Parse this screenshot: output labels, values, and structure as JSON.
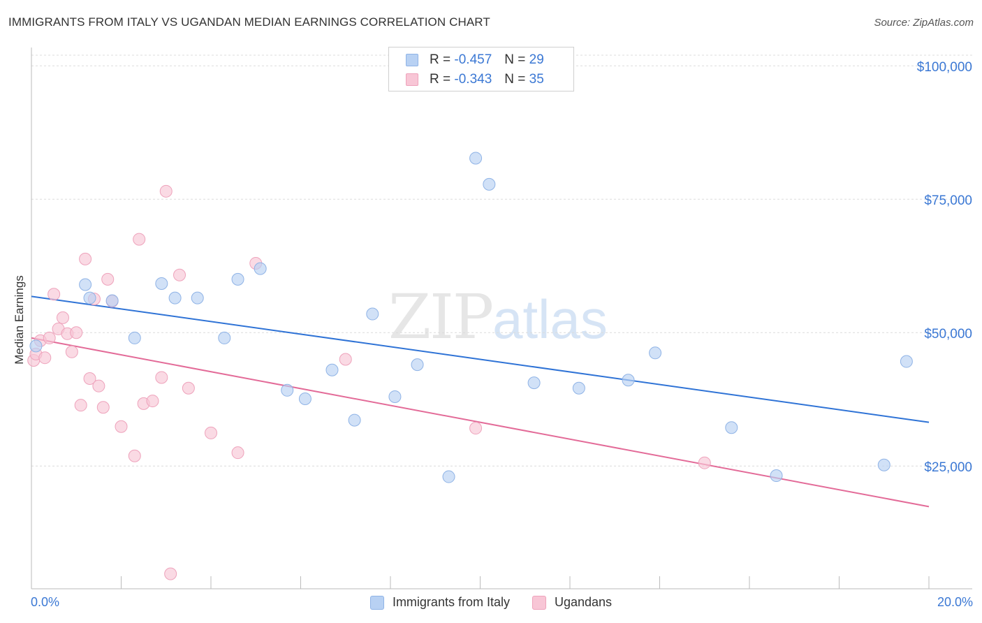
{
  "header": {
    "title": "IMMIGRANTS FROM ITALY VS UGANDAN MEDIAN EARNINGS CORRELATION CHART",
    "source": "Source: ZipAtlas.com"
  },
  "watermark": {
    "zip": "ZIP",
    "atlas": "atlas"
  },
  "legend_top": {
    "rows": [
      {
        "r_label": "R = ",
        "r_value": "-0.457",
        "n_label": "N = ",
        "n_value": "29"
      },
      {
        "r_label": "R = ",
        "r_value": "-0.343",
        "n_label": "N = ",
        "n_value": "35"
      }
    ]
  },
  "legend_bottom": {
    "items": [
      {
        "label": "Immigrants from Italy"
      },
      {
        "label": "Ugandans"
      }
    ]
  },
  "axes": {
    "ylabel": "Median Earnings",
    "x_tick_left": "0.0%",
    "x_tick_right": "20.0%",
    "y_ticks": [
      "$100,000",
      "$75,000",
      "$50,000",
      "$25,000"
    ]
  },
  "colors": {
    "italy_fill": "#b8d1f3",
    "italy_stroke": "#8fb3e6",
    "italy_line": "#2f73d6",
    "ugandan_fill": "#f8c6d6",
    "ugandan_stroke": "#eea2bb",
    "ugandan_line": "#e36b98",
    "tick_text": "#3b78d4"
  },
  "chart_data": {
    "type": "scatter",
    "title": "IMMIGRANTS FROM ITALY VS UGANDAN MEDIAN EARNINGS CORRELATION CHART",
    "xlabel": "",
    "ylabel": "Median Earnings",
    "xlim": [
      0,
      20
    ],
    "ylim": [
      2000,
      102000
    ],
    "x_unit": "%",
    "grid": "horizontal dashed",
    "legend_placement": "top-center and bottom",
    "series": [
      {
        "name": "Immigrants from Italy",
        "R": -0.457,
        "N": 29,
        "trend": {
          "x": [
            0,
            20
          ],
          "y": [
            56800,
            33200
          ]
        },
        "points": [
          {
            "x": 0.1,
            "y": 47500
          },
          {
            "x": 1.2,
            "y": 59000
          },
          {
            "x": 1.3,
            "y": 56500
          },
          {
            "x": 1.8,
            "y": 56000
          },
          {
            "x": 2.3,
            "y": 49000
          },
          {
            "x": 2.9,
            "y": 59200
          },
          {
            "x": 3.2,
            "y": 56500
          },
          {
            "x": 3.7,
            "y": 56500
          },
          {
            "x": 4.3,
            "y": 49000
          },
          {
            "x": 4.6,
            "y": 60000
          },
          {
            "x": 5.1,
            "y": 62000
          },
          {
            "x": 5.7,
            "y": 39200
          },
          {
            "x": 6.1,
            "y": 37600
          },
          {
            "x": 6.7,
            "y": 43000
          },
          {
            "x": 7.2,
            "y": 33600
          },
          {
            "x": 7.6,
            "y": 53500
          },
          {
            "x": 8.1,
            "y": 38000
          },
          {
            "x": 8.6,
            "y": 44000
          },
          {
            "x": 9.3,
            "y": 23000
          },
          {
            "x": 9.9,
            "y": 82700
          },
          {
            "x": 10.2,
            "y": 77800
          },
          {
            "x": 11.2,
            "y": 40600
          },
          {
            "x": 12.2,
            "y": 39600
          },
          {
            "x": 13.3,
            "y": 41100
          },
          {
            "x": 13.9,
            "y": 46200
          },
          {
            "x": 15.6,
            "y": 32200
          },
          {
            "x": 16.6,
            "y": 23200
          },
          {
            "x": 19.0,
            "y": 25200
          },
          {
            "x": 19.5,
            "y": 44600
          }
        ]
      },
      {
        "name": "Ugandans",
        "R": -0.343,
        "N": 35,
        "trend": {
          "x": [
            0,
            20
          ],
          "y": [
            49000,
            17400
          ]
        },
        "points": [
          {
            "x": 0.05,
            "y": 44800
          },
          {
            "x": 0.1,
            "y": 46000
          },
          {
            "x": 0.2,
            "y": 48500
          },
          {
            "x": 0.3,
            "y": 45300
          },
          {
            "x": 0.4,
            "y": 49000
          },
          {
            "x": 0.5,
            "y": 57200
          },
          {
            "x": 0.6,
            "y": 50700
          },
          {
            "x": 0.7,
            "y": 52800
          },
          {
            "x": 0.8,
            "y": 49800
          },
          {
            "x": 0.9,
            "y": 46400
          },
          {
            "x": 1.0,
            "y": 50000
          },
          {
            "x": 1.1,
            "y": 36400
          },
          {
            "x": 1.2,
            "y": 63800
          },
          {
            "x": 1.3,
            "y": 41400
          },
          {
            "x": 1.4,
            "y": 56300
          },
          {
            "x": 1.5,
            "y": 40000
          },
          {
            "x": 1.6,
            "y": 36000
          },
          {
            "x": 1.7,
            "y": 60000
          },
          {
            "x": 1.8,
            "y": 55900
          },
          {
            "x": 2.0,
            "y": 32400
          },
          {
            "x": 2.3,
            "y": 26900
          },
          {
            "x": 2.4,
            "y": 67500
          },
          {
            "x": 2.5,
            "y": 36700
          },
          {
            "x": 2.7,
            "y": 37200
          },
          {
            "x": 2.9,
            "y": 41600
          },
          {
            "x": 3.0,
            "y": 76500
          },
          {
            "x": 3.1,
            "y": 4800
          },
          {
            "x": 3.3,
            "y": 60800
          },
          {
            "x": 3.5,
            "y": 39600
          },
          {
            "x": 4.0,
            "y": 31200
          },
          {
            "x": 4.6,
            "y": 27500
          },
          {
            "x": 5.0,
            "y": 63000
          },
          {
            "x": 7.0,
            "y": 45000
          },
          {
            "x": 9.9,
            "y": 32100
          },
          {
            "x": 15.0,
            "y": 25600
          }
        ]
      }
    ]
  }
}
